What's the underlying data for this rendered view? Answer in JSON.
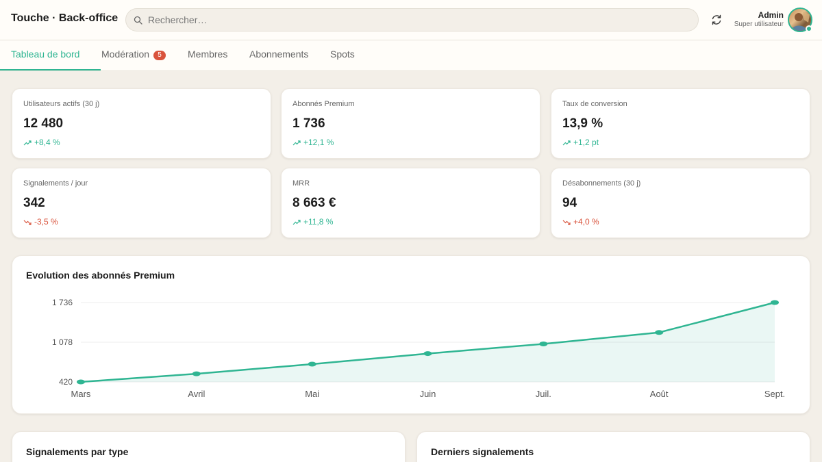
{
  "app": {
    "title": "Touche · Back-office"
  },
  "search": {
    "placeholder": "Rechercher…"
  },
  "user": {
    "name": "Admin",
    "role": "Super utilisateur"
  },
  "tabs": [
    {
      "label": "Tableau de bord",
      "active": true
    },
    {
      "label": "Modération",
      "badge": "5"
    },
    {
      "label": "Membres"
    },
    {
      "label": "Abonnements"
    },
    {
      "label": "Spots"
    }
  ],
  "kpis": [
    {
      "label": "Utilisateurs actifs (30 j)",
      "value": "12 480",
      "delta": "+8,4 %",
      "trend": "up"
    },
    {
      "label": "Abonnés Premium",
      "value": "1 736",
      "delta": "+12,1 %",
      "trend": "up"
    },
    {
      "label": "Taux de conversion",
      "value": "13,9 %",
      "delta": "+1,2 pt",
      "trend": "up"
    },
    {
      "label": "Signalements / jour",
      "value": "342",
      "delta": "-3,5 %",
      "trend": "down"
    },
    {
      "label": "MRR",
      "value": "8 663 €",
      "delta": "+11,8 %",
      "trend": "up"
    },
    {
      "label": "Désabonnements (30 j)",
      "value": "94",
      "delta": "+4,0 %",
      "trend": "down"
    }
  ],
  "chart": {
    "title": "Evolution des abonnés Premium"
  },
  "chart_data": {
    "type": "area",
    "title": "Evolution des abonnés Premium",
    "xlabel": "",
    "ylabel": "",
    "categories": [
      "Mars",
      "Avril",
      "Mai",
      "Juin",
      "Juil.",
      "Août",
      "Sept."
    ],
    "series": [
      {
        "values": [
          420,
          555,
          715,
          890,
          1050,
          1240,
          1736
        ]
      }
    ],
    "y_ticks": [
      "420",
      "1 078",
      "1 736"
    ],
    "y_tick_values": [
      420,
      1078,
      1736
    ],
    "ylim": [
      420,
      1736
    ],
    "grid": true,
    "color": "#2fb592"
  },
  "sections": {
    "reports_by_type": "Signalements par type",
    "latest_reports": "Derniers signalements"
  },
  "colors": {
    "accent": "#2fb592",
    "negative": "#d9533c"
  }
}
